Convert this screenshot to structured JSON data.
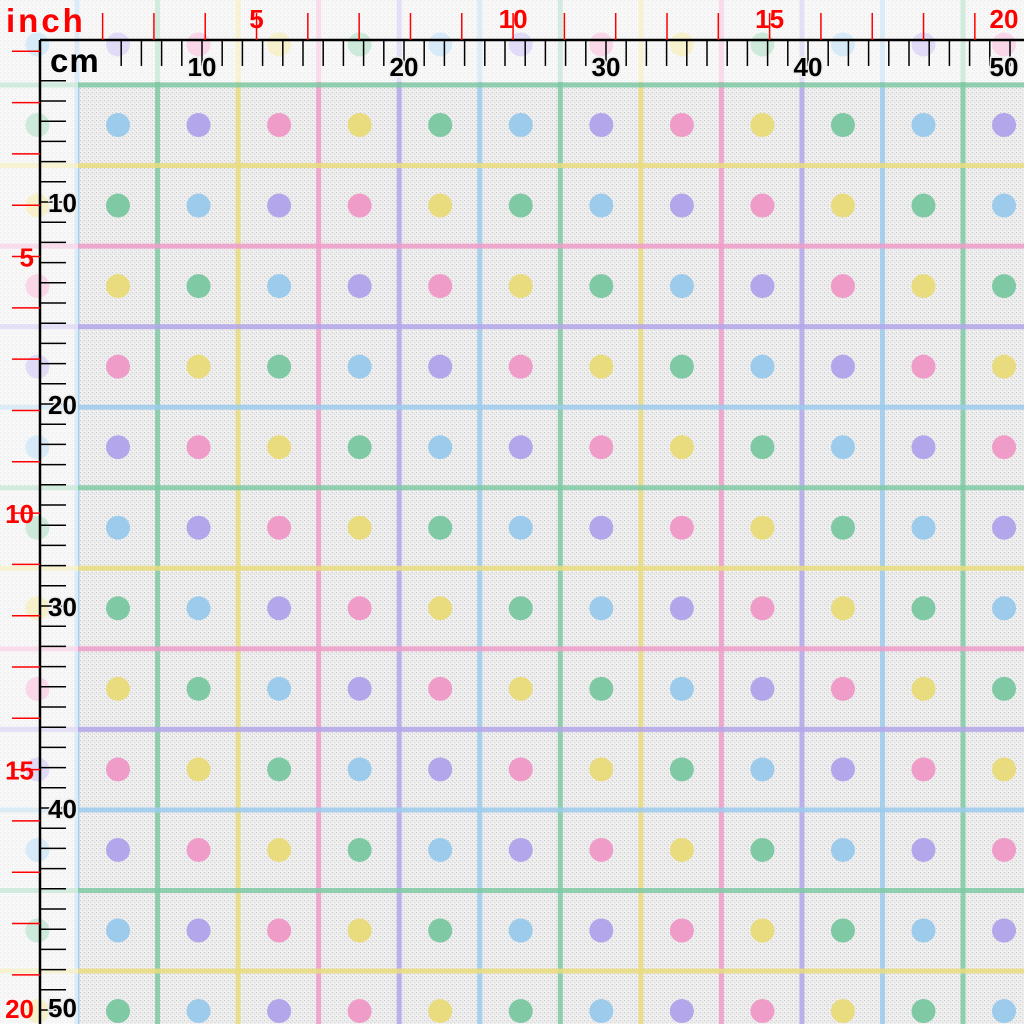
{
  "rulers": {
    "inch_unit": "inch",
    "cm_unit": "cm",
    "cm_labels": [
      "10",
      "20",
      "30",
      "40",
      "50"
    ],
    "inch_labels": [
      "5",
      "10",
      "15",
      "20"
    ],
    "inch_color": "#ff0000",
    "cm_color": "#000000"
  },
  "pattern": {
    "background": "#ececec",
    "line_color_cycle": [
      "#9ccbec",
      "#7fc9a4",
      "#e9dc7e",
      "#ef9cc8",
      "#b4a6ea"
    ],
    "dot_color_cycle": [
      "#9ccbec",
      "#b4a6ea",
      "#ef9cc8",
      "#e9dc7e",
      "#7fc9a4"
    ]
  }
}
